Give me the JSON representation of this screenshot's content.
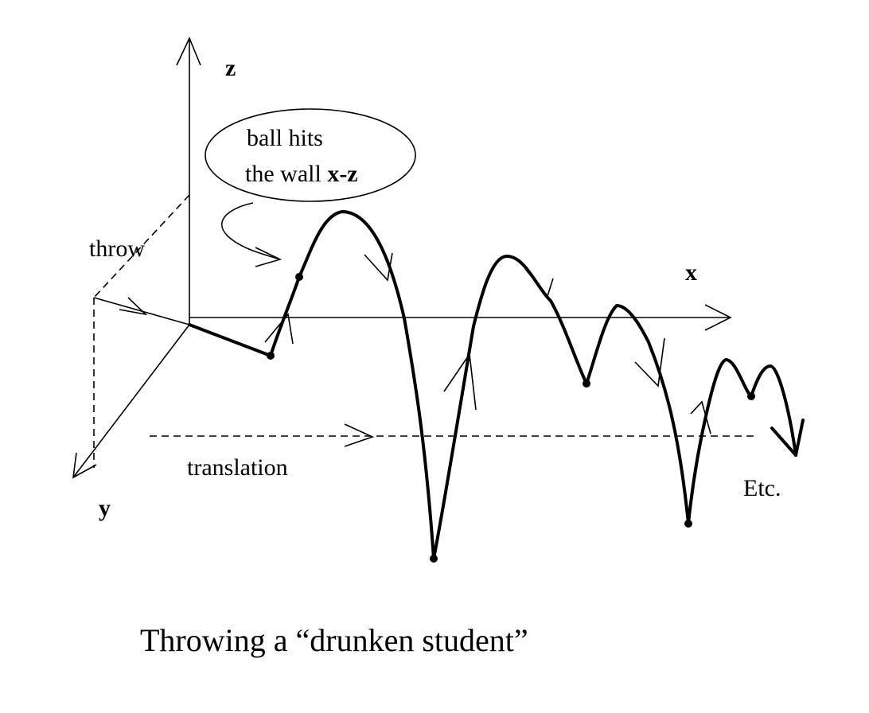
{
  "axes": {
    "z_label": "z",
    "x_label": "x",
    "y_label": "y"
  },
  "labels": {
    "throw": "throw",
    "translation": "translation",
    "etc": "Etc."
  },
  "callout": {
    "line1": "ball hits",
    "line2_prefix": "the wall ",
    "line2_bold": "x-z"
  },
  "caption": "Throwing a “drunken student”"
}
